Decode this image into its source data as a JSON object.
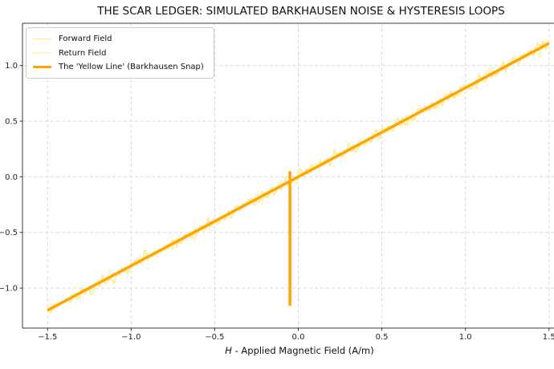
{
  "chart_data": {
    "type": "line",
    "title": "THE SCAR LEDGER: SIMULATED BARKHAUSEN NOISE & HYSTERESIS LOOPS",
    "xlabel": "H - Applied Magnetic Field (A/m)",
    "xlabel_var": "H",
    "xlabel_rest": " - Applied Magnetic Field (A/m)",
    "ylabel": "",
    "x_ticks": [
      -1.5,
      -1.0,
      -0.5,
      0.0,
      0.5,
      1.0,
      1.5
    ],
    "y_ticks": [
      -1.0,
      -0.5,
      0.0,
      0.5,
      1.0
    ],
    "xlim": [
      -1.65,
      1.53
    ],
    "ylim": [
      -1.36,
      1.38
    ],
    "grid": {
      "visible": true,
      "style": "dashed",
      "color": "#d9d9d9"
    },
    "legend": {
      "position": "upper-left",
      "items": [
        {
          "label": "Forward Field",
          "color": "#ffe887",
          "line_width": 1.6
        },
        {
          "label": "Return Field",
          "color": "#fff3c9",
          "line_width": 1.6
        },
        {
          "label": "The 'Yellow Line' (Barkhausen Snap)",
          "color": "#ffa500",
          "line_width": 3.5
        }
      ]
    },
    "series": [
      {
        "name": "Forward Field",
        "color": "#ffe887",
        "line_width": 1.2,
        "trend": {
          "slope": 0.8,
          "intercept": 0
        },
        "x_range": [
          -1.5,
          1.5
        ],
        "n_points": 420,
        "noise": {
          "amplitude": 0.045,
          "frequencies": [
            150,
            83,
            217
          ],
          "weights": [
            0.45,
            0.3,
            0.25
          ],
          "jitter": 0.9,
          "seed": 1337
        }
      },
      {
        "name": "Return Field",
        "color": "#fff3c9",
        "line_width": 1.2,
        "trend": {
          "slope": 0.8,
          "intercept": 0
        },
        "x_range": [
          -1.5,
          1.5
        ],
        "n_points": 420,
        "noise": {
          "amplitude": 0.045,
          "frequencies": [
            143,
            91,
            201
          ],
          "weights": [
            0.45,
            0.3,
            0.25
          ],
          "jitter": 0.9,
          "seed": 2024
        }
      },
      {
        "name": "The 'Yellow Line' (Barkhausen Snap)",
        "color": "#ffa500",
        "line_width": 3.5,
        "segments": [
          [
            [
              -1.5,
              -1.2
            ],
            [
              1.5,
              1.2
            ]
          ],
          [
            [
              -0.05,
              0.05
            ],
            [
              -0.05,
              -1.16
            ]
          ]
        ],
        "description": "Linear line y = 0.8x from (-1.5,-1.2) to (1.5,1.2) with a vertical Barkhausen snap segment at H = -0.05 spanning M = 0.05 down to M = -1.16"
      }
    ],
    "band": {
      "between": [
        0,
        1
      ],
      "color": "#ffedaa",
      "opacity": 0.5
    },
    "colors": {
      "accent_orange": "#ffa500",
      "noise_gold": "#ffe887",
      "noise_pale": "#fff3c9",
      "grid": "#d9d9d9"
    }
  }
}
